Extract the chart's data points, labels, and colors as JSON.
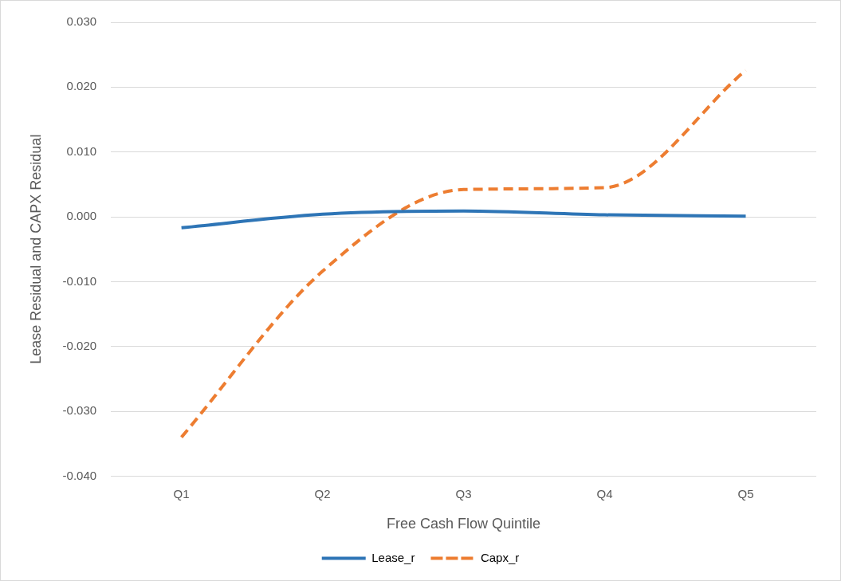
{
  "chart_data": {
    "type": "line",
    "xlabel": "Free Cash Flow Quintile",
    "ylabel": "Lease Residual and CAPX Residual",
    "categories": [
      "Q1",
      "Q2",
      "Q3",
      "Q4",
      "Q5"
    ],
    "series": [
      {
        "name": "Lease_r",
        "color": "#2e75b6",
        "line_style": "solid",
        "values": [
          -0.0017,
          0.0004,
          0.0009,
          0.0003,
          0.0001
        ]
      },
      {
        "name": "Capx_r",
        "color": "#ed7d31",
        "line_style": "dashed",
        "values": [
          -0.034,
          -0.0084,
          0.0042,
          0.0045,
          0.0226
        ]
      }
    ],
    "ylim": [
      -0.04,
      0.03
    ],
    "yticks": [
      {
        "value": -0.04,
        "label": "-0.040"
      },
      {
        "value": -0.03,
        "label": "-0.030"
      },
      {
        "value": -0.02,
        "label": "-0.020"
      },
      {
        "value": -0.01,
        "label": "-0.010"
      },
      {
        "value": 0,
        "label": "0.000"
      },
      {
        "value": 0.01,
        "label": "0.010"
      },
      {
        "value": 0.02,
        "label": "0.020"
      },
      {
        "value": 0.03,
        "label": "0.030"
      }
    ],
    "grid": "y",
    "legend": "bottom",
    "marker": "none"
  }
}
